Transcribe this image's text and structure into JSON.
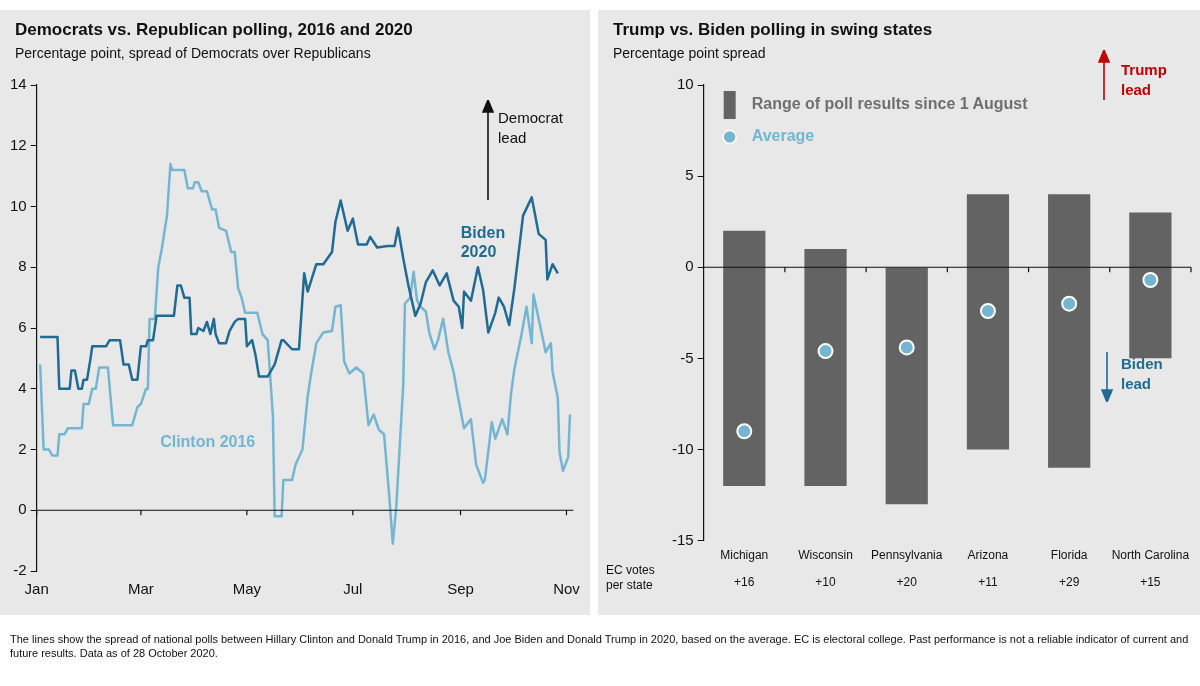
{
  "chart_data": [
    {
      "type": "line",
      "title": "Democrats vs. Republican polling, 2016 and 2020",
      "subtitle": "Percentage point, spread of Democrats over Republicans",
      "xlim": [
        "--01-01",
        "--11-05"
      ],
      "xticks": [
        {
          "value": "--01-01",
          "label": "Jan"
        },
        {
          "value": "--03-01",
          "label": "Mar"
        },
        {
          "value": "--05-01",
          "label": "May"
        },
        {
          "value": "--07-01",
          "label": "Jul"
        },
        {
          "value": "--09-01",
          "label": "Sep"
        },
        {
          "value": "--11-01",
          "label": "Nov"
        }
      ],
      "ylim": [
        -2,
        14
      ],
      "yticks": [
        -2,
        0,
        2,
        4,
        6,
        8,
        10,
        12,
        14
      ],
      "grid": false,
      "legend": false,
      "marker": "none",
      "ref_lines": [
        {
          "axis": "y",
          "value": 0,
          "color": "#111111"
        }
      ],
      "series": [
        {
          "name": "Biden 2020",
          "color": "#1f6b94",
          "x": [
            "--01-03",
            "--01-13",
            "--01-14",
            "--01-20",
            "--01-21",
            "--01-23",
            "--01-25",
            "--01-27",
            "--01-28",
            "--01-30",
            "--02-01",
            "--02-02",
            "--02-10",
            "--02-12",
            "--02-18",
            "--02-20",
            "--02-23",
            "--02-25",
            "--02-28",
            "--03-01",
            "--03-04",
            "--03-05",
            "--03-08",
            "--03-10",
            "--03-12",
            "--03-20",
            "--03-22",
            "--03-24",
            "--03-26",
            "--03-29",
            "--03-30",
            "--04-02",
            "--04-03",
            "--04-06",
            "--04-08",
            "--04-10",
            "--04-12",
            "--04-13",
            "--04-15",
            "--04-19",
            "--04-21",
            "--04-24",
            "--04-26",
            "--04-30",
            "--05-01",
            "--05-04",
            "--05-06",
            "--05-08",
            "--05-13",
            "--05-17",
            "--05-21",
            "--05-22",
            "--05-27",
            "--05-31",
            "--06-03",
            "--06-05",
            "--06-10",
            "--06-14",
            "--06-19",
            "--06-21",
            "--06-24",
            "--06-28",
            "--07-01",
            "--07-04",
            "--07-09",
            "--07-11",
            "--07-15",
            "--07-21",
            "--07-25",
            "--07-27",
            "--07-30",
            "--08-02",
            "--08-06",
            "--08-09",
            "--08-12",
            "--08-16",
            "--08-20",
            "--08-24",
            "--08-28",
            "--08-31",
            "--09-02",
            "--09-03",
            "--09-07",
            "--09-11",
            "--09-14",
            "--09-17",
            "--09-21",
            "--09-23",
            "--09-26",
            "--09-29",
            "--10-02",
            "--10-07",
            "--10-12",
            "--10-16",
            "--10-20",
            "--10-21",
            "--10-24",
            "--10-27"
          ],
          "values": [
            5.7,
            5.7,
            4.0,
            4.0,
            4.6,
            4.6,
            4.0,
            4.0,
            4.3,
            4.3,
            5.0,
            5.4,
            5.4,
            5.6,
            5.6,
            4.8,
            4.8,
            4.3,
            4.3,
            5.4,
            5.4,
            5.6,
            5.6,
            6.4,
            6.4,
            6.4,
            7.4,
            7.4,
            7.0,
            7.0,
            5.8,
            5.8,
            6.0,
            5.9,
            6.2,
            5.8,
            6.3,
            5.8,
            5.5,
            5.5,
            5.9,
            6.2,
            6.3,
            6.3,
            5.4,
            5.6,
            5.1,
            4.4,
            4.4,
            4.8,
            5.6,
            5.6,
            5.3,
            5.3,
            7.8,
            7.2,
            8.1,
            8.1,
            8.5,
            9.5,
            10.2,
            9.2,
            9.6,
            8.75,
            8.75,
            9.0,
            8.65,
            8.7,
            8.7,
            9.3,
            8.3,
            7.4,
            6.4,
            6.8,
            7.5,
            7.9,
            7.4,
            7.8,
            6.9,
            6.7,
            6.0,
            7.2,
            6.9,
            8.0,
            7.25,
            5.85,
            6.5,
            7.0,
            6.7,
            6.1,
            7.3,
            9.7,
            10.3,
            9.1,
            8.9,
            7.6,
            8.1,
            7.8
          ]
        },
        {
          "name": "Clinton 2016",
          "color": "#74b6d2",
          "x": [
            "--01-03",
            "--01-05",
            "--01-08",
            "--01-10",
            "--01-13",
            "--01-14",
            "--01-17",
            "--01-19",
            "--01-27",
            "--01-28",
            "--01-31",
            "--02-02",
            "--02-04",
            "--02-06",
            "--02-11",
            "--02-13",
            "--02-14",
            "--02-25",
            "--02-28",
            "--03-01",
            "--03-04",
            "--03-05",
            "--03-06",
            "--03-09",
            "--03-11",
            "--03-13",
            "--03-16",
            "--03-18",
            "--03-19",
            "--03-26",
            "--03-28",
            "--03-31",
            "--04-01",
            "--04-03",
            "--04-05",
            "--04-08",
            "--04-09",
            "--04-11",
            "--04-13",
            "--04-15",
            "--04-19",
            "--04-22",
            "--04-24",
            "--04-26",
            "--04-28",
            "--04-30",
            "--05-07",
            "--05-10",
            "--05-13",
            "--05-16",
            "--05-17",
            "--05-21",
            "--05-22",
            "--05-27",
            "--05-29",
            "--06-02",
            "--06-05",
            "--06-07",
            "--06-10",
            "--06-14",
            "--06-19",
            "--06-21",
            "--06-24",
            "--06-26",
            "--06-29",
            "--07-03",
            "--07-07",
            "--07-10",
            "--07-13",
            "--07-16",
            "--07-19",
            "--07-22",
            "--07-24",
            "--07-26",
            "--07-30",
            "--07-31",
            "--08-03",
            "--08-05",
            "--08-07",
            "--08-09",
            "--08-12",
            "--08-14",
            "--08-17",
            "--08-19",
            "--08-22",
            "--08-25",
            "--08-28",
            "--08-30",
            "--09-03",
            "--09-07",
            "--09-10",
            "--09-14",
            "--09-15",
            "--09-19",
            "--09-21",
            "--09-25",
            "--09-28",
            "--09-30",
            "--10-02",
            "--10-06",
            "--10-09",
            "--10-12",
            "--10-13",
            "--10-16",
            "--10-20",
            "--10-23",
            "--10-24",
            "--10-27",
            "--10-28",
            "--10-30",
            "--11-02",
            "--11-03"
          ],
          "values": [
            4.8,
            2.0,
            2.0,
            1.8,
            1.8,
            2.5,
            2.5,
            2.7,
            2.7,
            3.5,
            3.5,
            4.0,
            4.0,
            4.7,
            4.7,
            3.4,
            2.8,
            2.8,
            3.4,
            3.5,
            4.0,
            4.0,
            6.3,
            6.3,
            8.0,
            8.6,
            9.7,
            11.4,
            11.2,
            11.2,
            10.6,
            10.6,
            10.8,
            10.8,
            10.5,
            10.5,
            10.3,
            9.9,
            9.9,
            9.3,
            9.2,
            8.5,
            8.5,
            7.3,
            7.0,
            6.5,
            6.5,
            5.8,
            5.6,
            3.1,
            -0.2,
            -0.2,
            1.0,
            1.0,
            1.5,
            2.0,
            3.75,
            4.5,
            5.5,
            5.85,
            5.9,
            6.7,
            6.75,
            4.9,
            4.5,
            4.7,
            4.5,
            2.8,
            3.15,
            2.65,
            2.5,
            0.45,
            -1.1,
            0.1,
            4.1,
            6.8,
            7.0,
            7.85,
            6.9,
            6.7,
            6.55,
            5.85,
            5.3,
            5.6,
            6.3,
            5.2,
            4.55,
            3.9,
            2.7,
            3.0,
            1.5,
            0.9,
            1.0,
            2.9,
            2.35,
            3.0,
            2.5,
            3.8,
            4.65,
            5.75,
            6.7,
            5.5,
            7.1,
            6.3,
            5.2,
            5.5,
            4.55,
            3.7,
            1.9,
            1.3,
            1.75,
            3.15
          ]
        }
      ],
      "annotations": [
        "Democrat lead",
        "The lines show the spread of national polls between Hillary Clinton and Donald Trump in 2016, and Joe Biden and Donald Trump in 2020, based on the average. EC is electoral college. Past performance is not a reliable indicator of current and future results. Data as of 28 October 2020."
      ]
    },
    {
      "type": "bar",
      "title": "Trump vs. Biden polling in swing states",
      "subtitle": "Percentage point spread",
      "categories": [
        "Michigan",
        "Wisconsin",
        "Pennsylvania",
        "Arizona",
        "Florida",
        "North Carolina"
      ],
      "ylim": [
        -15,
        10
      ],
      "yticks": [
        -15,
        -10,
        -5,
        0,
        5,
        10
      ],
      "grid": false,
      "legend": "top left",
      "ref_lines": [
        {
          "axis": "y",
          "value": 0,
          "color": "#111111"
        }
      ],
      "series": [
        {
          "name": "Range of poll results since 1 August",
          "type": "bar",
          "color": "#636363",
          "base": [
            -12,
            -12,
            -13,
            -10,
            -11,
            -5
          ],
          "values": [
            14,
            13,
            13,
            14,
            15,
            8
          ]
        },
        {
          "name": "Average",
          "type": "scatter",
          "color": "#74b6d2",
          "x": [
            "Michigan",
            "Wisconsin",
            "Pennsylvania",
            "Arizona",
            "Florida",
            "North Carolina"
          ],
          "values": [
            -9,
            -4.6,
            -4.4,
            -2.4,
            -2.0,
            -0.7
          ]
        }
      ],
      "annotations": [
        "Trump lead",
        "Biden lead",
        "EC votes per state",
        "+16",
        "+10",
        "+20",
        "+11",
        "+29",
        "+15"
      ]
    }
  ]
}
